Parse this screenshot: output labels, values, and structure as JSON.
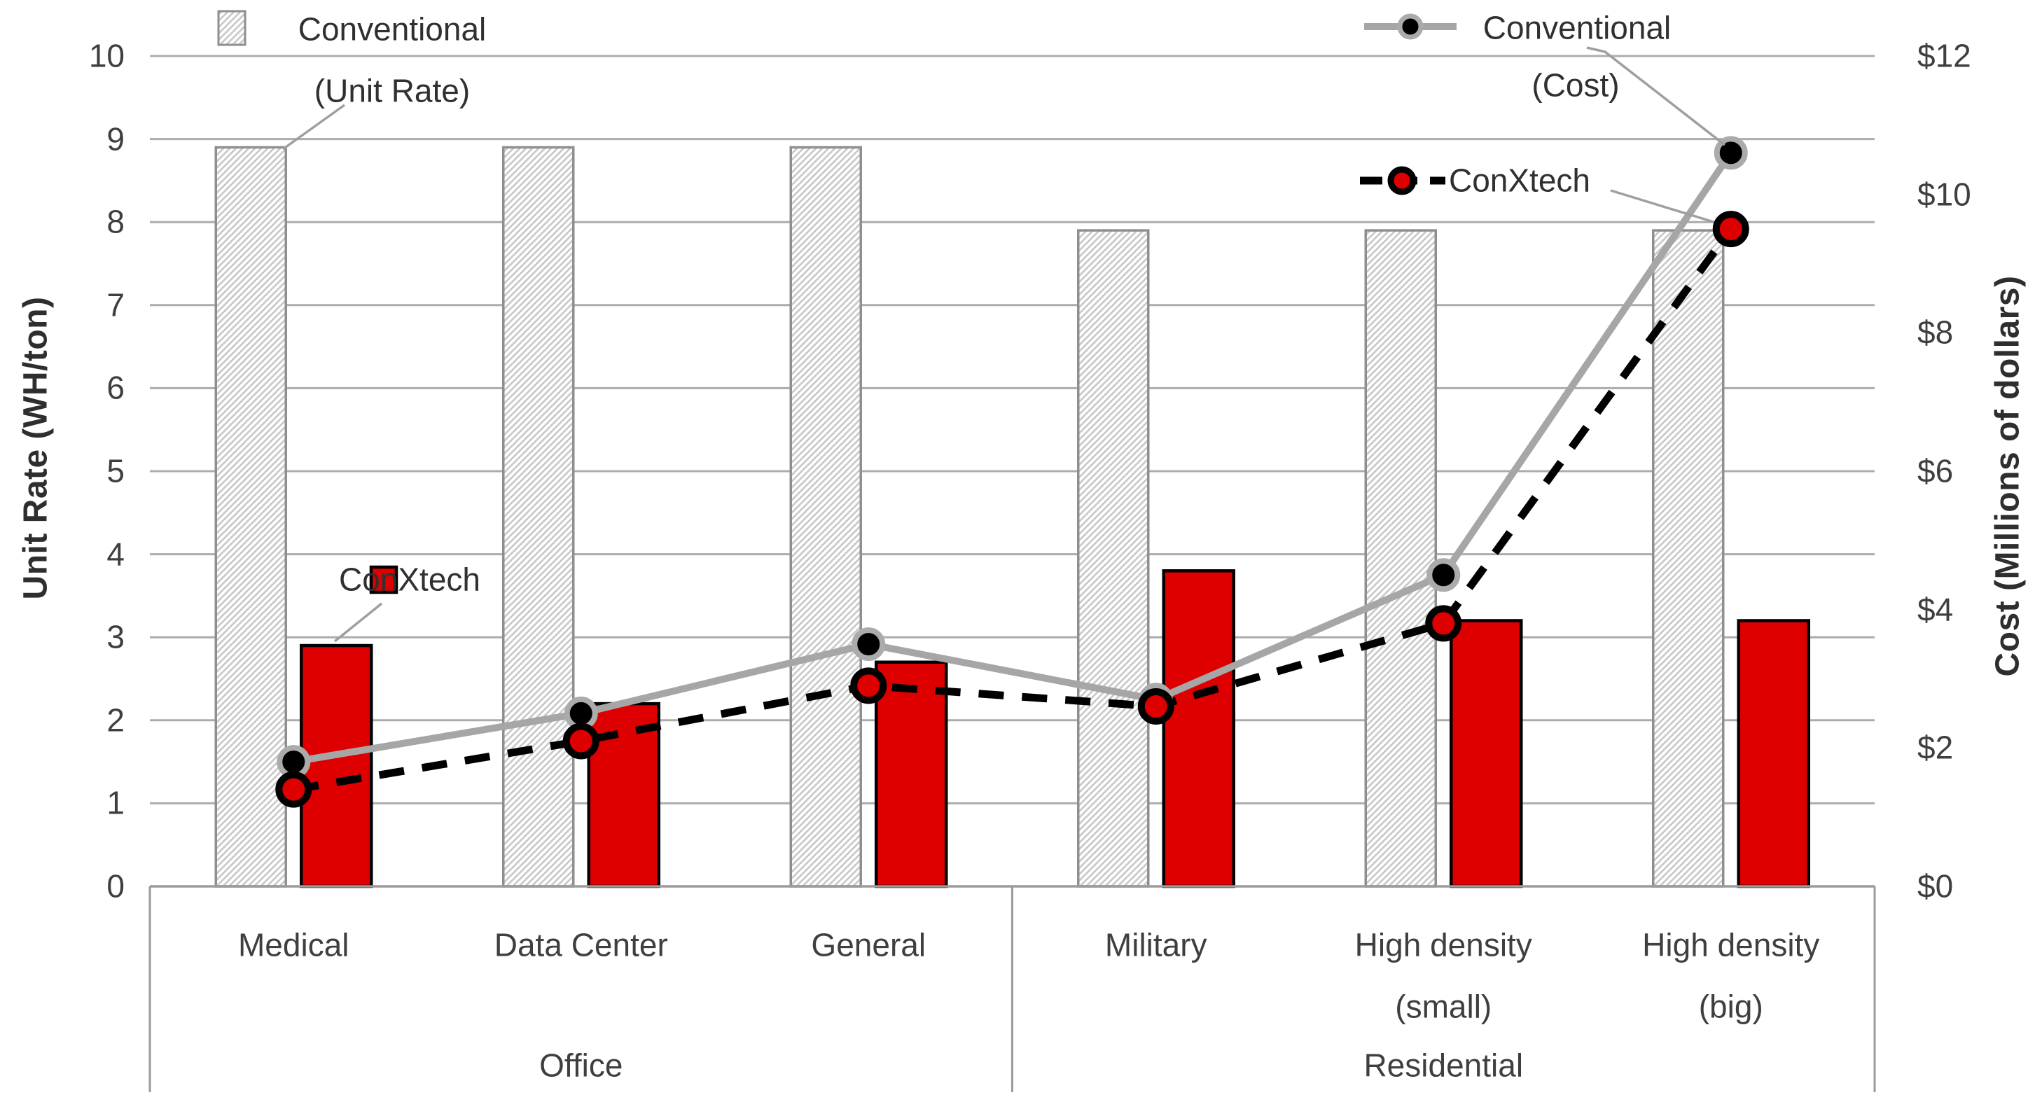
{
  "chart_data": {
    "type": "combo-bar-line",
    "title": "",
    "categories": [
      [
        "Medical"
      ],
      [
        "Data Center"
      ],
      [
        "General"
      ],
      [
        "Military"
      ],
      [
        "High density",
        "(small)"
      ],
      [
        "High density",
        "(big)"
      ]
    ],
    "category_groups": [
      {
        "label": "Office",
        "start": 0,
        "end": 2
      },
      {
        "label": "Residential",
        "start": 3,
        "end": 5
      }
    ],
    "left_axis": {
      "title": "Unit Rate (WH/ton)",
      "min": 0,
      "max": 10,
      "step": 1,
      "ticks": [
        "0",
        "1",
        "2",
        "3",
        "4",
        "5",
        "6",
        "7",
        "8",
        "9",
        "10"
      ]
    },
    "right_axis": {
      "title": "Cost (Millions of dollars)",
      "min": 0,
      "max": 12,
      "step": 2,
      "ticks": [
        "$0",
        "$2",
        "$4",
        "$6",
        "$8",
        "$10",
        "$12"
      ]
    },
    "grid": true,
    "bar_series": [
      {
        "name": "Conventional (Unit Rate)",
        "axis": "left",
        "style": "hatched",
        "values": [
          8.9,
          8.9,
          8.9,
          7.9,
          7.9,
          7.9
        ]
      },
      {
        "name": "ConXtech",
        "axis": "left",
        "style": "solid-red",
        "values": [
          2.9,
          2.2,
          2.7,
          3.8,
          3.2,
          3.2
        ]
      }
    ],
    "line_series": [
      {
        "name": "Conventional (Cost)",
        "axis": "right",
        "style": "solid-gray",
        "marker": "black-dot-gray-ring",
        "values": [
          1.8,
          2.5,
          3.5,
          2.7,
          4.5,
          10.6
        ]
      },
      {
        "name": "ConXtech",
        "axis": "right",
        "style": "dashed-black",
        "marker": "red-dot-black-ring",
        "values": [
          1.4,
          2.1,
          2.9,
          2.6,
          3.8,
          9.5
        ]
      }
    ],
    "legend": {
      "bar_conventional": {
        "line1": "Conventional",
        "line2": "(Unit Rate)"
      },
      "bar_conxtech": {
        "label": "ConXtech"
      },
      "line_conventional": {
        "line1": "Conventional",
        "line2": "(Cost)"
      },
      "line_conxtech": {
        "label": "ConXtech"
      }
    },
    "colors": {
      "red": "#DE0000",
      "gray_line": "#A6A6A6",
      "marker_ring_gray": "#ABABAB",
      "black": "#000000",
      "hatch_line": "#C8C8C8",
      "bar_border_gray": "#8F8F8F",
      "grid_line": "#ACACAC",
      "box_line": "#9B9B9B",
      "leader_line": "#9F9F9F",
      "text": "#3F3F3F"
    }
  }
}
